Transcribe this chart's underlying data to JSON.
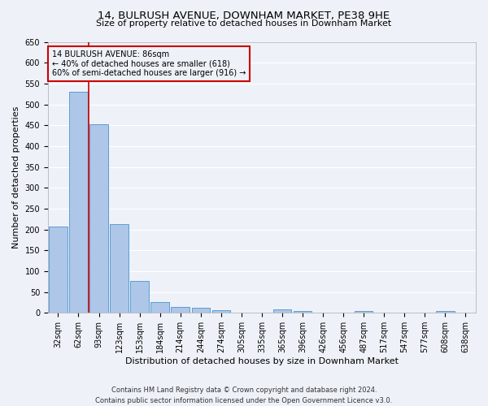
{
  "title1": "14, BULRUSH AVENUE, DOWNHAM MARKET, PE38 9HE",
  "title2": "Size of property relative to detached houses in Downham Market",
  "xlabel": "Distribution of detached houses by size in Downham Market",
  "ylabel": "Number of detached properties",
  "categories": [
    "32sqm",
    "62sqm",
    "93sqm",
    "123sqm",
    "153sqm",
    "184sqm",
    "214sqm",
    "244sqm",
    "274sqm",
    "305sqm",
    "335sqm",
    "365sqm",
    "396sqm",
    "426sqm",
    "456sqm",
    "487sqm",
    "517sqm",
    "547sqm",
    "577sqm",
    "608sqm",
    "638sqm"
  ],
  "values": [
    207,
    530,
    452,
    212,
    77,
    26,
    15,
    12,
    7,
    1,
    0,
    8,
    5,
    0,
    0,
    5,
    0,
    0,
    0,
    5,
    0
  ],
  "bar_color": "#aec6e8",
  "bar_edgecolor": "#5a9fd4",
  "property_label": "14 BULRUSH AVENUE: 86sqm",
  "annotation_line1": "← 40% of detached houses are smaller (618)",
  "annotation_line2": "60% of semi-detached houses are larger (916) →",
  "vline_x": 1.5,
  "vline_color": "#cc0000",
  "annotation_box_color": "#cc0000",
  "footer1": "Contains HM Land Registry data © Crown copyright and database right 2024.",
  "footer2": "Contains public sector information licensed under the Open Government Licence v3.0.",
  "ylim": [
    0,
    650
  ],
  "yticks": [
    0,
    50,
    100,
    150,
    200,
    250,
    300,
    350,
    400,
    450,
    500,
    550,
    600,
    650
  ],
  "bg_color": "#eef2f8",
  "grid_color": "#ffffff",
  "title1_fontsize": 9.5,
  "title2_fontsize": 8,
  "xlabel_fontsize": 8,
  "ylabel_fontsize": 8,
  "tick_fontsize": 7,
  "footer_fontsize": 6,
  "annot_fontsize": 7
}
